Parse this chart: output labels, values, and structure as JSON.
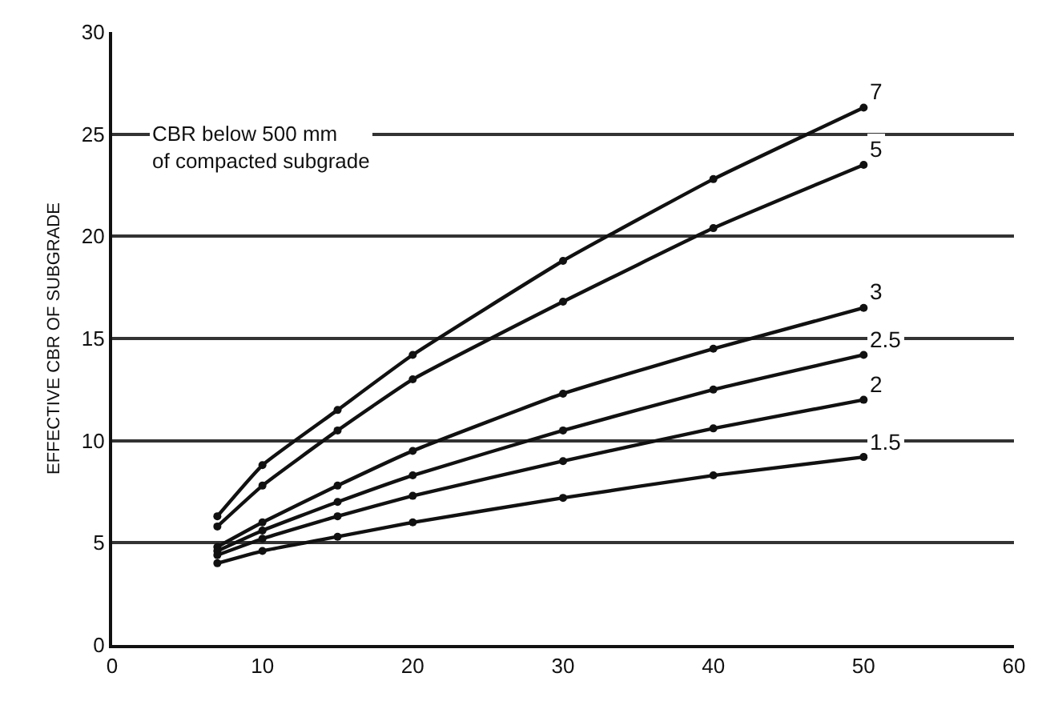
{
  "chart_data": {
    "type": "line",
    "ylabel": "EFFECTIVE CBR OF SUBGRADE",
    "x": [
      7,
      10,
      15,
      20,
      30,
      40,
      50
    ],
    "series": [
      {
        "name": "7",
        "color": "#111111",
        "values": [
          6.3,
          8.8,
          11.5,
          14.2,
          18.8,
          22.8,
          26.3
        ]
      },
      {
        "name": "5",
        "color": "#111111",
        "values": [
          5.8,
          7.8,
          10.5,
          13,
          16.8,
          20.4,
          23.5
        ]
      },
      {
        "name": "3",
        "color": "#111111",
        "values": [
          4.8,
          6.0,
          7.8,
          9.5,
          12.3,
          14.5,
          16.5
        ]
      },
      {
        "name": "2.5",
        "color": "#111111",
        "values": [
          4.6,
          5.6,
          7.0,
          8.3,
          10.5,
          12.5,
          14.2
        ]
      },
      {
        "name": "2",
        "color": "#111111",
        "values": [
          4.4,
          5.2,
          6.3,
          7.3,
          9.0,
          10.6,
          12.0
        ]
      },
      {
        "name": "1.5",
        "color": "#111111",
        "values": [
          4.0,
          4.6,
          5.3,
          6.0,
          7.2,
          8.3,
          9.2
        ]
      }
    ],
    "annotations": [
      "CBR below 500 mm\nof compacted subgrade"
    ],
    "xlim": [
      0,
      60
    ],
    "xticks": [
      0,
      10,
      20,
      30,
      40,
      50,
      60
    ],
    "ylim": [
      0,
      30
    ],
    "yticks": [
      0,
      5,
      10,
      15,
      20,
      25,
      30
    ],
    "grid": "y",
    "legend": false,
    "marker": "circle",
    "line_style": "solid"
  }
}
